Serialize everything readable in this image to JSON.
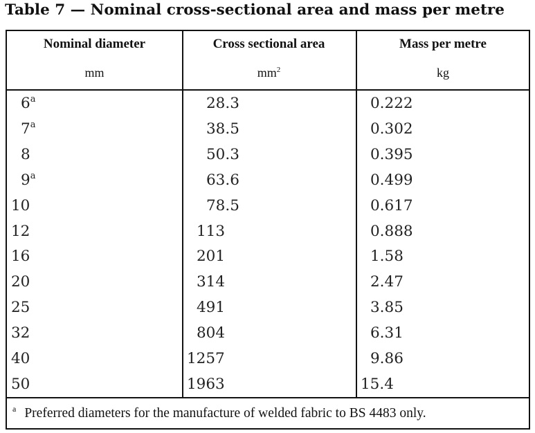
{
  "title": "Table 7 — Nominal cross-sectional area and mass per metre",
  "headers": [
    {
      "label": "Nominal diameter",
      "unit": "mm",
      "unit_sup": ""
    },
    {
      "label": "Cross sectional area",
      "unit": "mm",
      "unit_sup": "2"
    },
    {
      "label": "Mass per metre",
      "unit": "kg",
      "unit_sup": ""
    }
  ],
  "rows": [
    {
      "diameter": "6",
      "mark": "a",
      "area": "28.3",
      "mass": "0.222"
    },
    {
      "diameter": "7",
      "mark": "a",
      "area": "38.5",
      "mass": "0.302"
    },
    {
      "diameter": "8",
      "mark": "",
      "area": "50.3",
      "mass": "0.395"
    },
    {
      "diameter": "9",
      "mark": "a",
      "area": "63.6",
      "mass": "0.499"
    },
    {
      "diameter": "10",
      "mark": "",
      "area": "78.5",
      "mass": "0.617"
    },
    {
      "diameter": "12",
      "mark": "",
      "area": "113",
      "mass": "0.888"
    },
    {
      "diameter": "16",
      "mark": "",
      "area": "201",
      "mass": "1.58"
    },
    {
      "diameter": "20",
      "mark": "",
      "area": "314",
      "mass": "2.47"
    },
    {
      "diameter": "25",
      "mark": "",
      "area": "491",
      "mass": "3.85"
    },
    {
      "diameter": "32",
      "mark": "",
      "area": "804",
      "mass": "6.31"
    },
    {
      "diameter": "40",
      "mark": "",
      "area": "1257",
      "mass": "9.86"
    },
    {
      "diameter": "50",
      "mark": "",
      "area": "1963",
      "mass": "15.4"
    }
  ],
  "footnote": {
    "mark": "a",
    "text": "Preferred diameters for the manufacture of welded fabric to BS 4483 only."
  }
}
